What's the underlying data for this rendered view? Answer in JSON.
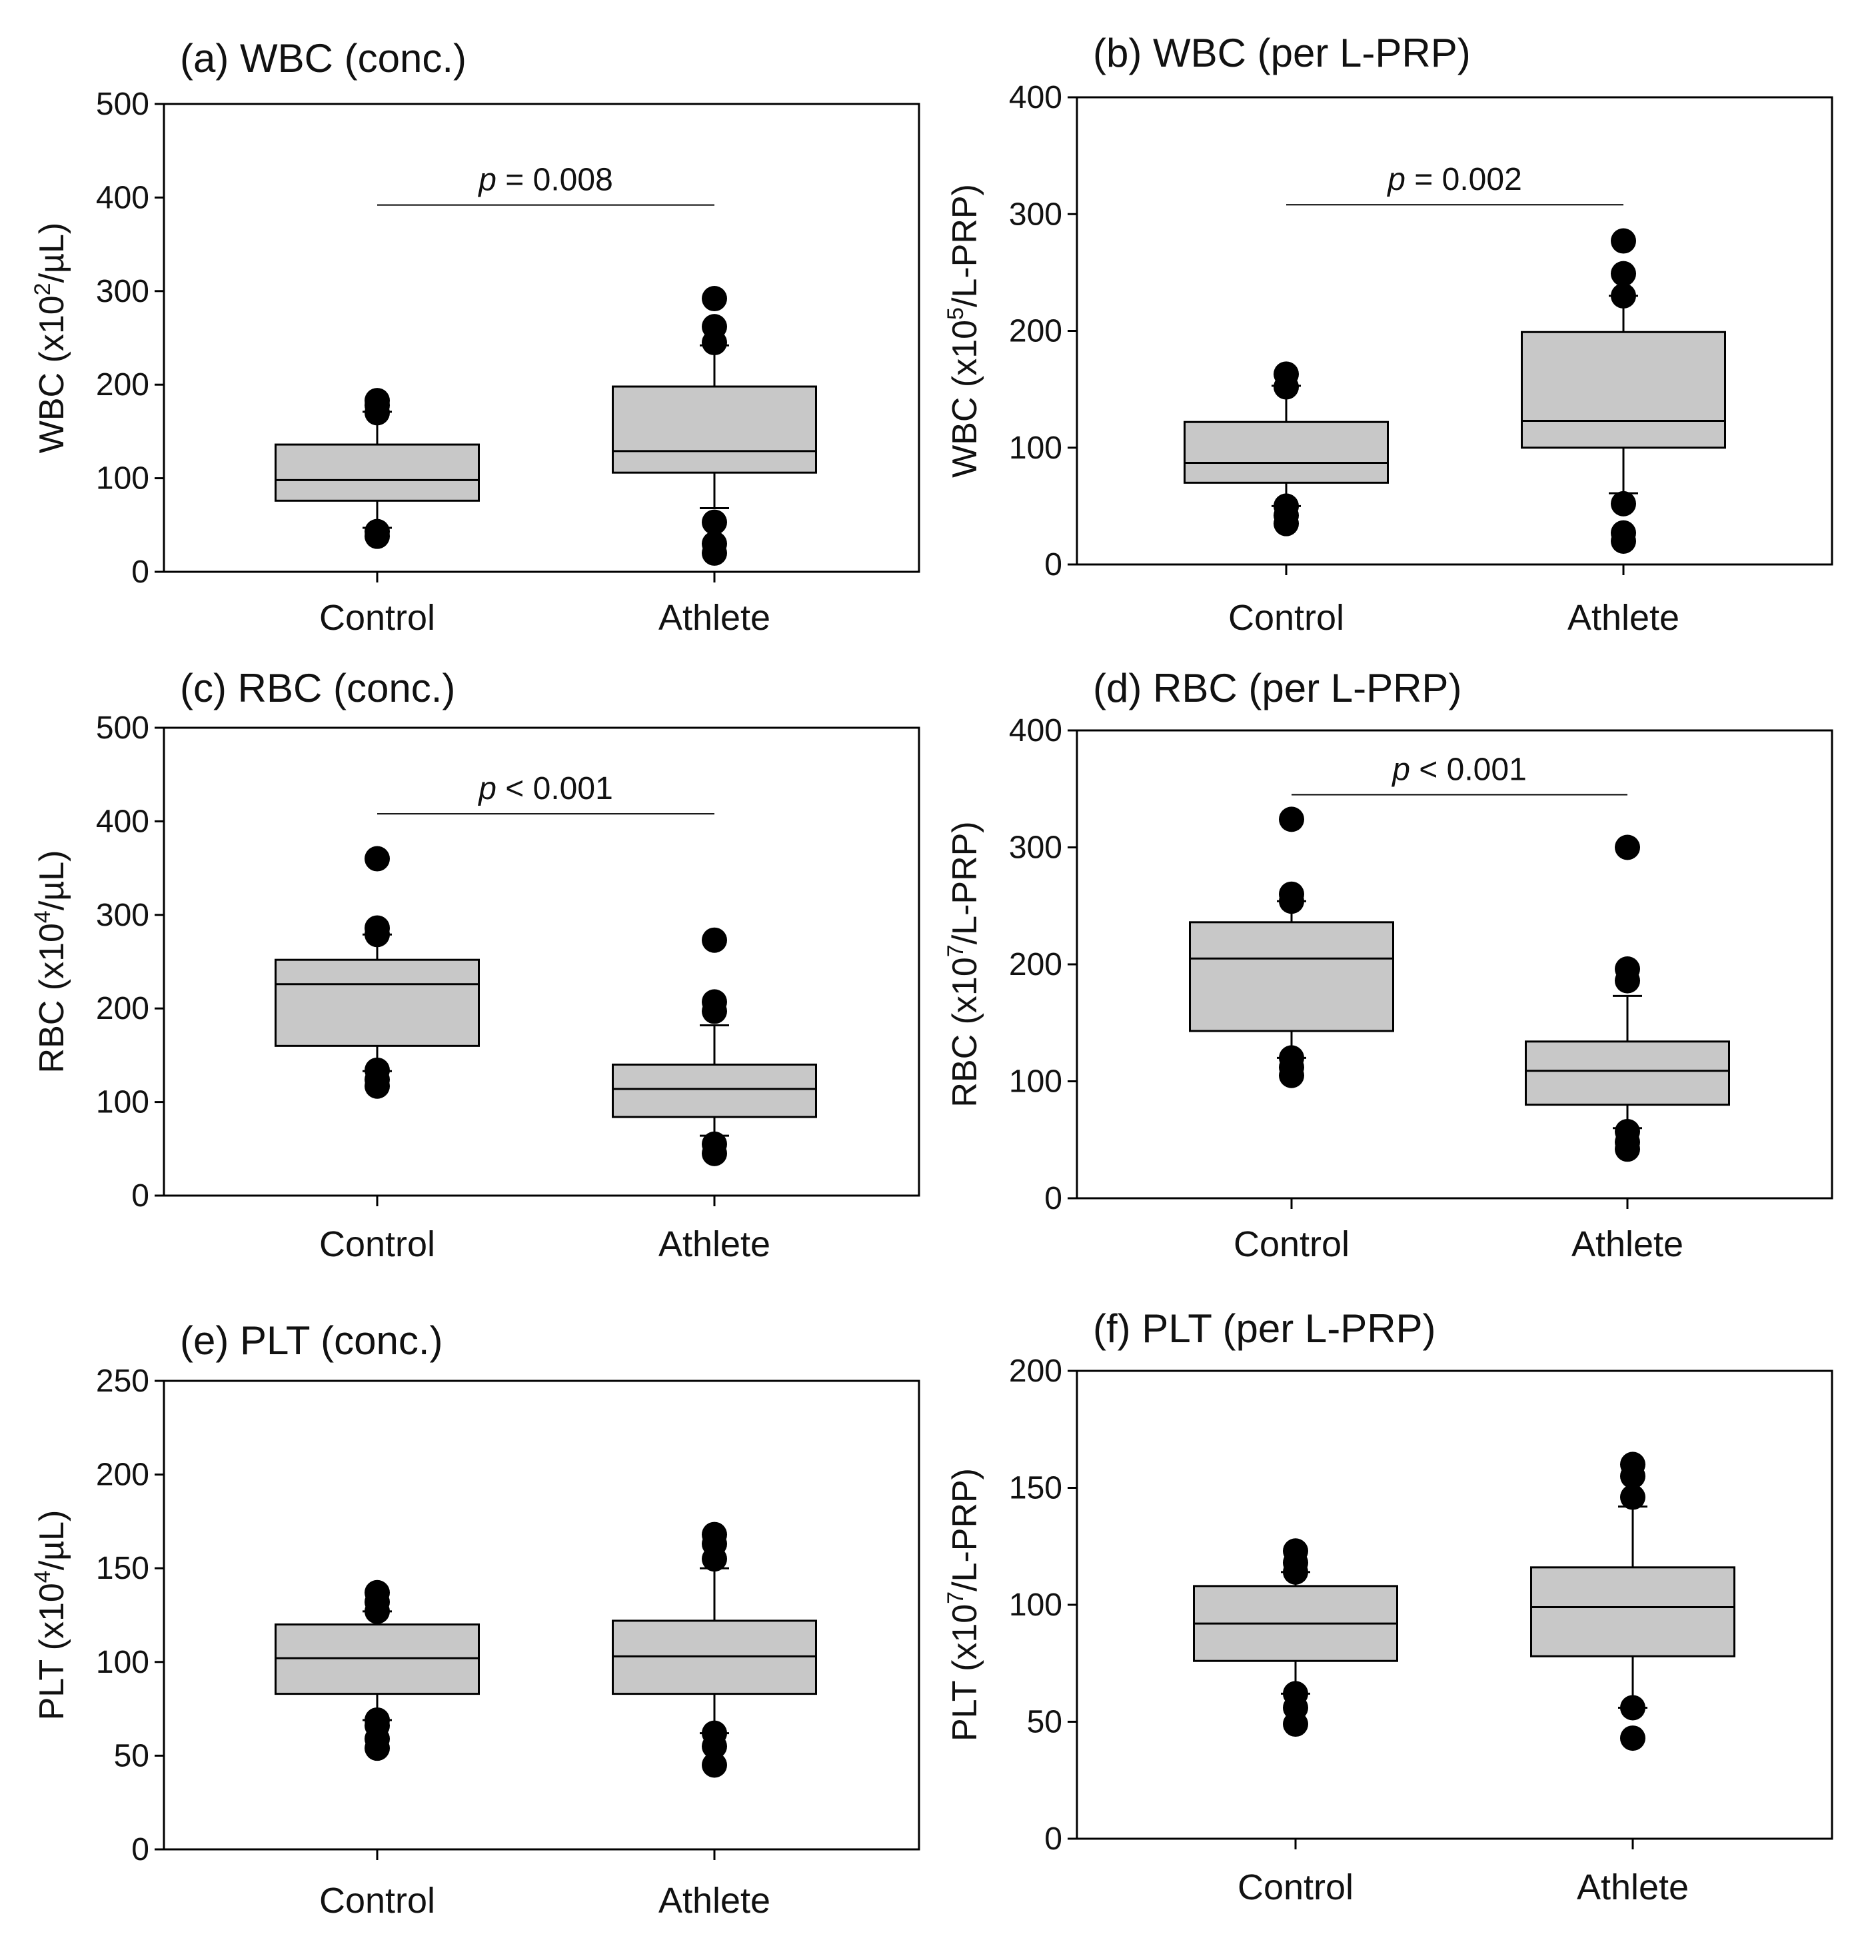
{
  "figure": {
    "colors": {
      "box_fill": "#c8c8c8",
      "stroke": "#000000",
      "outlier": "#000000",
      "background": "#ffffff"
    }
  },
  "chart_data": [
    {
      "id": "a",
      "type": "boxplot",
      "title": "(a) WBC (conc.)",
      "ylabel": {
        "base": "WBC (x10",
        "sup": "2",
        "unit": "/µL)"
      },
      "ylim": [
        0,
        500
      ],
      "yticks": [
        0,
        100,
        200,
        300,
        400,
        500
      ],
      "categories": [
        "Control",
        "Athlete"
      ],
      "boxes": [
        {
          "category": "Control",
          "whisker_low": 47,
          "q1": 76,
          "median": 98,
          "q3": 136,
          "whisker_high": 171,
          "outliers": [
            38,
            43,
            170,
            178,
            183
          ]
        },
        {
          "category": "Athlete",
          "whisker_low": 68,
          "q1": 106,
          "median": 129,
          "q3": 198,
          "whisker_high": 242,
          "outliers": [
            20,
            30,
            53,
            245,
            262,
            292
          ]
        }
      ],
      "significance": {
        "label_italic": "p",
        "label_rest": " = 0.008",
        "y": 392
      }
    },
    {
      "id": "b",
      "type": "boxplot",
      "title": "(b) WBC (per L-PRP)",
      "ylabel": {
        "base": "WBC (x10",
        "sup": "5",
        "unit": "/L-PRP)"
      },
      "ylim": [
        0,
        400
      ],
      "yticks": [
        0,
        100,
        200,
        300,
        400
      ],
      "categories": [
        "Control",
        "Athlete"
      ],
      "boxes": [
        {
          "category": "Control",
          "whisker_low": 50,
          "q1": 70,
          "median": 87,
          "q3": 122,
          "whisker_high": 153,
          "outliers": [
            35,
            42,
            50,
            152,
            163
          ]
        },
        {
          "category": "Athlete",
          "whisker_low": 61,
          "q1": 100,
          "median": 123,
          "q3": 199,
          "whisker_high": 230,
          "outliers": [
            20,
            27,
            52,
            230,
            249,
            277
          ]
        }
      ],
      "significance": {
        "label_italic": "p",
        "label_rest": " = 0.002",
        "y": 308
      }
    },
    {
      "id": "c",
      "type": "boxplot",
      "title": "(c) RBC (conc.)",
      "ylabel": {
        "base": "RBC (x10",
        "sup": "4",
        "unit": "/µL)"
      },
      "ylim": [
        0,
        500
      ],
      "yticks": [
        0,
        100,
        200,
        300,
        400,
        500
      ],
      "categories": [
        "Control",
        "Athlete"
      ],
      "boxes": [
        {
          "category": "Control",
          "whisker_low": 133,
          "q1": 160,
          "median": 226,
          "q3": 252,
          "whisker_high": 279,
          "outliers": [
            117,
            124,
            134,
            279,
            286,
            360
          ]
        },
        {
          "category": "Athlete",
          "whisker_low": 64,
          "q1": 84,
          "median": 114,
          "q3": 140,
          "whisker_high": 182,
          "outliers": [
            45,
            55,
            197,
            207,
            273
          ]
        }
      ],
      "significance": {
        "label_italic": "p",
        "label_rest": " < 0.001",
        "y": 408
      }
    },
    {
      "id": "d",
      "type": "boxplot",
      "title": "(d) RBC (per L-PRP)",
      "ylabel": {
        "base": "RBC (x10",
        "sup": "7",
        "unit": "/L-PRP)"
      },
      "ylim": [
        0,
        400
      ],
      "yticks": [
        0,
        100,
        200,
        300,
        400
      ],
      "categories": [
        "Control",
        "Athlete"
      ],
      "boxes": [
        {
          "category": "Control",
          "whisker_low": 120,
          "q1": 143,
          "median": 205,
          "q3": 236,
          "whisker_high": 254,
          "outliers": [
            105,
            112,
            120,
            254,
            260,
            324
          ]
        },
        {
          "category": "Athlete",
          "whisker_low": 60,
          "q1": 80,
          "median": 109,
          "q3": 134,
          "whisker_high": 173,
          "outliers": [
            42,
            48,
            57,
            186,
            196,
            300
          ]
        }
      ],
      "significance": {
        "label_italic": "p",
        "label_rest": " < 0.001",
        "y": 345
      }
    },
    {
      "id": "e",
      "type": "boxplot",
      "title": "(e) PLT (conc.)",
      "ylabel": {
        "base": "PLT (x10",
        "sup": "4",
        "unit": "/µL)"
      },
      "ylim": [
        0,
        250
      ],
      "yticks": [
        0,
        50,
        100,
        150,
        200,
        250
      ],
      "categories": [
        "Control",
        "Athlete"
      ],
      "boxes": [
        {
          "category": "Control",
          "whisker_low": 69,
          "q1": 83,
          "median": 102,
          "q3": 120,
          "whisker_high": 127,
          "outliers": [
            54,
            59,
            66,
            69,
            127,
            132,
            137
          ]
        },
        {
          "category": "Athlete",
          "whisker_low": 62,
          "q1": 83,
          "median": 103,
          "q3": 122,
          "whisker_high": 150,
          "outliers": [
            45,
            55,
            62,
            155,
            163,
            168
          ]
        }
      ],
      "significance": null
    },
    {
      "id": "f",
      "type": "boxplot",
      "title": "(f) PLT (per L-PRP)",
      "ylabel": {
        "base": "PLT (x10",
        "sup": "7",
        "unit": "/L-PRP)"
      },
      "ylim": [
        0,
        200
      ],
      "yticks": [
        0,
        50,
        100,
        150,
        200
      ],
      "categories": [
        "Control",
        "Athlete"
      ],
      "boxes": [
        {
          "category": "Control",
          "whisker_low": 62,
          "q1": 76,
          "median": 92,
          "q3": 108,
          "whisker_high": 114,
          "outliers": [
            49,
            56,
            62,
            114,
            118,
            123
          ]
        },
        {
          "category": "Athlete",
          "whisker_low": 56,
          "q1": 78,
          "median": 99,
          "q3": 116,
          "whisker_high": 142,
          "outliers": [
            43,
            56,
            146,
            155,
            160
          ]
        }
      ],
      "significance": null
    }
  ]
}
